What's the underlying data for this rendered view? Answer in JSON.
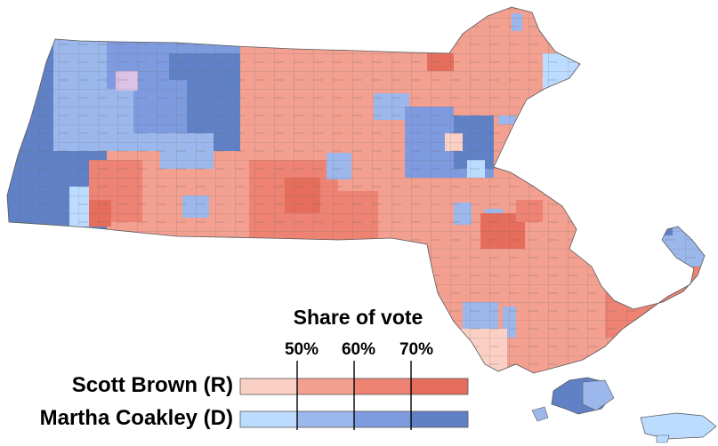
{
  "legend": {
    "title": "Share of vote",
    "ticks": [
      "50%",
      "60%",
      "70%"
    ],
    "candidates": [
      {
        "name": "Scott Brown (R)",
        "colors": [
          "#fbd0c4",
          "#f3a091",
          "#ee8373",
          "#e66d5c"
        ]
      },
      {
        "name": "Martha Coakley (D)",
        "colors": [
          "#bcdcff",
          "#9cb7ec",
          "#7f9be0",
          "#6181c6"
        ]
      }
    ]
  },
  "colors": {
    "outline": "#5a5a5a",
    "background": "#ffffff"
  }
}
